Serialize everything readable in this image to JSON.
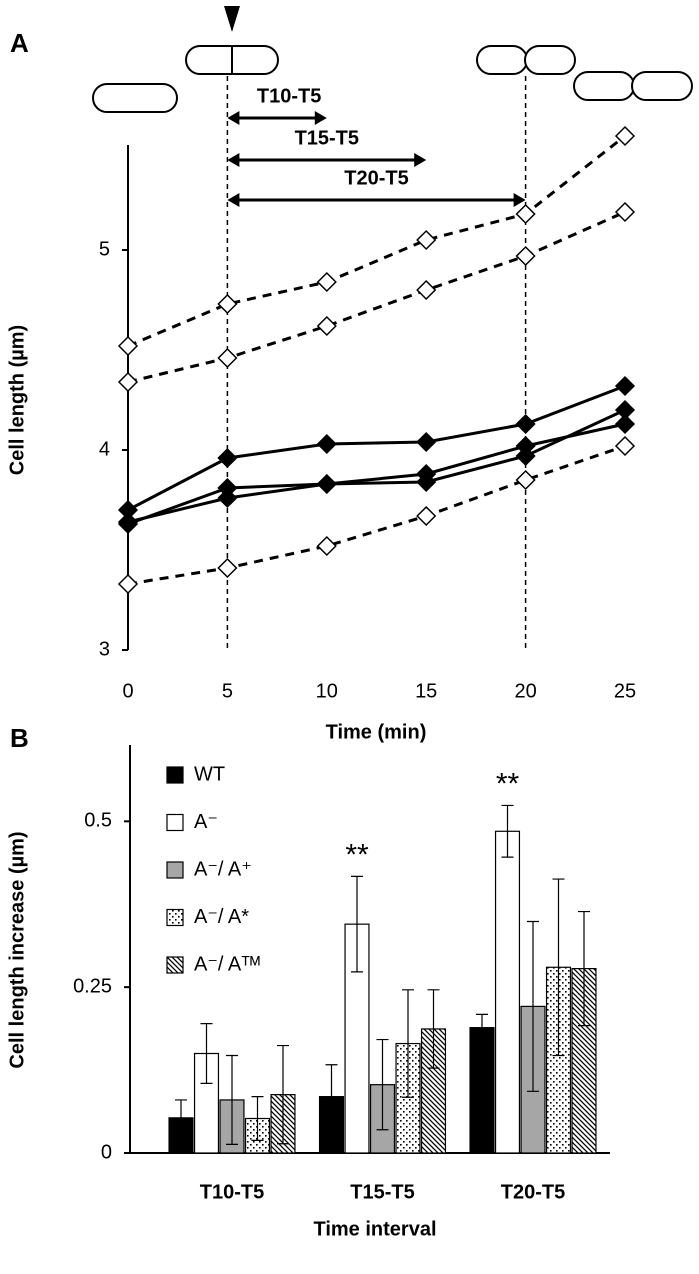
{
  "chart_data": [
    {
      "type": "line",
      "label": "A",
      "xlabel": "Time (min)",
      "ylabel": "Cell length (µm)",
      "x": [
        0,
        5,
        10,
        15,
        20,
        25
      ],
      "xlim": [
        0,
        25
      ],
      "xticks": [
        0,
        5,
        10,
        15,
        20,
        25
      ],
      "ylim": [
        3,
        5.5
      ],
      "yticks": [
        3,
        4,
        5
      ],
      "vlines": [
        5,
        20
      ],
      "annotations": [
        {
          "text": "T10-T5",
          "x": [
            5,
            10
          ]
        },
        {
          "text": "T15-T5",
          "x": [
            5,
            15
          ]
        },
        {
          "text": "T20-T5",
          "x": [
            5,
            20
          ]
        }
      ],
      "series": [
        {
          "color": "#000000",
          "marker": "filled",
          "dashed": false,
          "values": [
            3.7,
            3.96,
            4.03,
            4.04,
            4.13,
            4.32
          ]
        },
        {
          "color": "#000000",
          "marker": "filled",
          "dashed": false,
          "values": [
            3.63,
            3.81,
            3.83,
            3.84,
            3.97,
            4.2
          ]
        },
        {
          "color": "#000000",
          "marker": "filled",
          "dashed": false,
          "values": [
            3.64,
            3.76,
            3.83,
            3.88,
            4.02,
            4.13
          ]
        },
        {
          "color": "#000000",
          "marker": "open",
          "dashed": true,
          "values": [
            4.52,
            4.73,
            4.84,
            5.05,
            5.18,
            5.57
          ]
        },
        {
          "color": "#000000",
          "marker": "open",
          "dashed": true,
          "values": [
            4.34,
            4.46,
            4.62,
            4.8,
            4.97,
            5.19
          ]
        },
        {
          "color": "#000000",
          "marker": "open",
          "dashed": true,
          "values": [
            3.33,
            3.41,
            3.52,
            3.67,
            3.85,
            4.02
          ]
        }
      ]
    },
    {
      "type": "bar",
      "label": "B",
      "xlabel": "Time interval",
      "ylabel": "Cell length increase (µm)",
      "categories": [
        "T10-T5",
        "T15-T5",
        "T20-T5"
      ],
      "ylim": [
        0,
        0.6
      ],
      "yticks": [
        0,
        0.25,
        0.5
      ],
      "annotations": [
        "**",
        "**"
      ],
      "series": [
        {
          "name": "WT",
          "color": "#000000",
          "pattern": "solid",
          "values": [
            0.053,
            0.085,
            0.189
          ],
          "errors": [
            0.027,
            0.048,
            0.02
          ]
        },
        {
          "name": "A⁻",
          "color": "#ffffff",
          "pattern": "solid",
          "values": [
            0.15,
            0.345,
            0.485
          ],
          "errors": [
            0.045,
            0.072,
            0.039
          ]
        },
        {
          "name": "A⁻/ A⁺",
          "color": "#a6a6a6",
          "pattern": "solid",
          "values": [
            0.08,
            0.103,
            0.221
          ],
          "errors": [
            0.067,
            0.068,
            0.128
          ]
        },
        {
          "name": "A⁻/ A*",
          "color": "#ffffff",
          "pattern": "dots",
          "values": [
            0.052,
            0.165,
            0.28
          ],
          "errors": [
            0.033,
            0.081,
            0.133
          ]
        },
        {
          "name": "A⁻/ Aᵀᴹ",
          "color": "#ffffff",
          "pattern": "hatch",
          "values": [
            0.088,
            0.187,
            0.278
          ],
          "errors": [
            0.074,
            0.059,
            0.086
          ]
        }
      ]
    }
  ]
}
